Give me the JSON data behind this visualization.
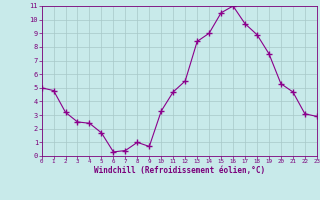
{
  "x": [
    0,
    1,
    2,
    3,
    4,
    5,
    6,
    7,
    8,
    9,
    10,
    11,
    12,
    13,
    14,
    15,
    16,
    17,
    18,
    19,
    20,
    21,
    22,
    23
  ],
  "y": [
    5.0,
    4.8,
    3.2,
    2.5,
    2.4,
    1.7,
    0.3,
    0.4,
    1.0,
    0.7,
    3.3,
    4.7,
    5.5,
    8.4,
    9.0,
    10.5,
    11.0,
    9.7,
    8.9,
    7.5,
    5.3,
    4.7,
    3.1,
    2.9
  ],
  "line_color": "#8b008b",
  "marker": "+",
  "marker_size": 4,
  "bg_color": "#c8eaea",
  "grid_color": "#a8c8c8",
  "xlabel": "Windchill (Refroidissement éolien,°C)",
  "xlim": [
    0,
    23
  ],
  "ylim": [
    0,
    11
  ],
  "xticks": [
    0,
    1,
    2,
    3,
    4,
    5,
    6,
    7,
    8,
    9,
    10,
    11,
    12,
    13,
    14,
    15,
    16,
    17,
    18,
    19,
    20,
    21,
    22,
    23
  ],
  "yticks": [
    0,
    1,
    2,
    3,
    4,
    5,
    6,
    7,
    8,
    9,
    10,
    11
  ],
  "font_color": "#7b007b"
}
